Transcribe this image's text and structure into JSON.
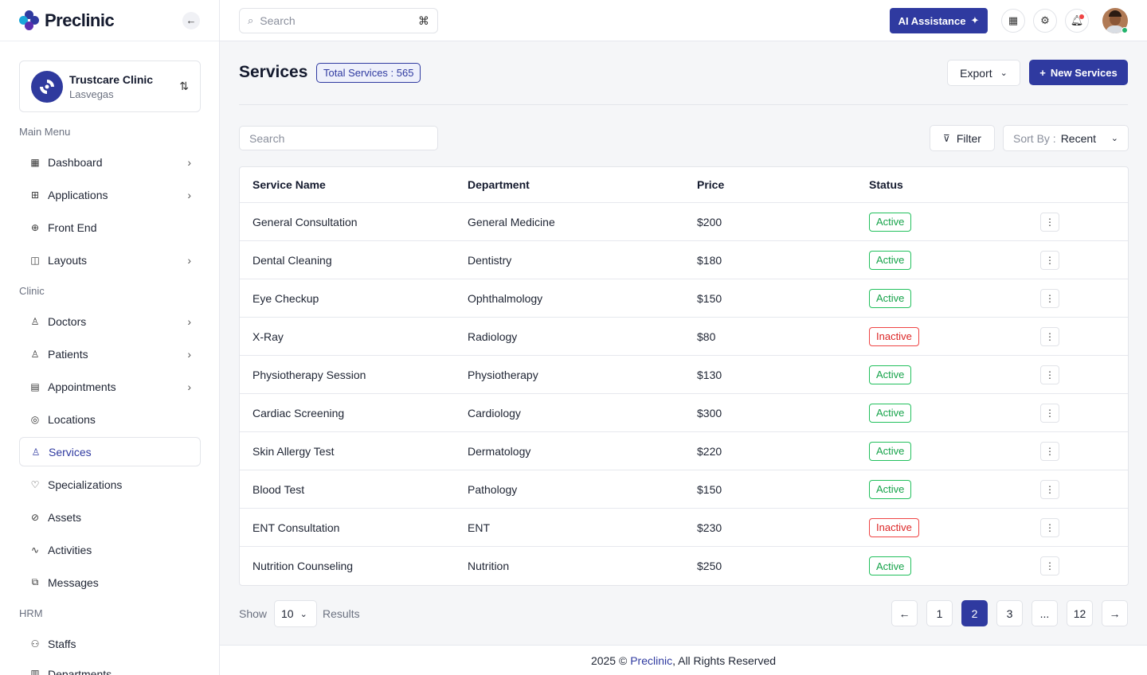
{
  "brand": {
    "name": "Preclinic"
  },
  "clinic": {
    "name": "Trustcare Clinic",
    "location": "Lasvegas"
  },
  "sidebar": {
    "sections": {
      "main": "Main Menu",
      "clinic": "Clinic",
      "hrm": "HRM"
    },
    "items": [
      {
        "label": "Dashboard",
        "icon": "grid-icon"
      },
      {
        "label": "Applications",
        "icon": "apps-icon"
      },
      {
        "label": "Front End",
        "icon": "globe-icon"
      },
      {
        "label": "Layouts",
        "icon": "layout-icon"
      },
      {
        "label": "Doctors",
        "icon": "user-icon"
      },
      {
        "label": "Patients",
        "icon": "user-icon"
      },
      {
        "label": "Appointments",
        "icon": "calendar-icon"
      },
      {
        "label": "Locations",
        "icon": "location-icon"
      },
      {
        "label": "Services",
        "icon": "user-gear-icon"
      },
      {
        "label": "Specializations",
        "icon": "stethoscope-icon"
      },
      {
        "label": "Assets",
        "icon": "pill-icon"
      },
      {
        "label": "Activities",
        "icon": "activity-icon"
      },
      {
        "label": "Messages",
        "icon": "message-icon"
      },
      {
        "label": "Staffs",
        "icon": "users-icon"
      },
      {
        "label": "Departments",
        "icon": "building-icon"
      }
    ]
  },
  "topbar": {
    "search_placeholder": "Search",
    "shortcut": "⌘",
    "ai_button": "AI Assistance"
  },
  "page": {
    "title": "Services",
    "total_badge": "Total Services : 565",
    "export_label": "Export",
    "new_button": "New Services",
    "search_placeholder": "Search",
    "filter_label": "Filter",
    "sort_label": "Sort By :",
    "sort_value": "Recent"
  },
  "table": {
    "columns": [
      "Service Name",
      "Department",
      "Price",
      "Status"
    ],
    "rows": [
      {
        "name": "General Consultation",
        "department": "General Medicine",
        "price": "$200",
        "status": "Active"
      },
      {
        "name": "Dental Cleaning",
        "department": "Dentistry",
        "price": "$180",
        "status": "Active"
      },
      {
        "name": "Eye Checkup",
        "department": "Ophthalmology",
        "price": "$150",
        "status": "Active"
      },
      {
        "name": "X-Ray",
        "department": "Radiology",
        "price": "$80",
        "status": "Inactive"
      },
      {
        "name": "Physiotherapy Session",
        "department": "Physiotherapy",
        "price": "$130",
        "status": "Active"
      },
      {
        "name": "Cardiac Screening",
        "department": "Cardiology",
        "price": "$300",
        "status": "Active"
      },
      {
        "name": "Skin Allergy Test",
        "department": "Dermatology",
        "price": "$220",
        "status": "Active"
      },
      {
        "name": "Blood Test",
        "department": "Pathology",
        "price": "$150",
        "status": "Active"
      },
      {
        "name": "ENT Consultation",
        "department": "ENT",
        "price": "$230",
        "status": "Inactive"
      },
      {
        "name": "Nutrition Counseling",
        "department": "Nutrition",
        "price": "$250",
        "status": "Active"
      }
    ]
  },
  "pagination": {
    "show_label": "Show",
    "per_page": "10",
    "results_label": "Results",
    "pages": [
      "1",
      "2",
      "3",
      "...",
      "12"
    ],
    "current": "2"
  },
  "footer": {
    "prefix": "2025 © ",
    "brand": "Preclinic",
    "suffix": ", All Rights Reserved"
  },
  "colors": {
    "primary": "#2f3aa0",
    "active": "#16a34a",
    "inactive": "#dc2626"
  }
}
